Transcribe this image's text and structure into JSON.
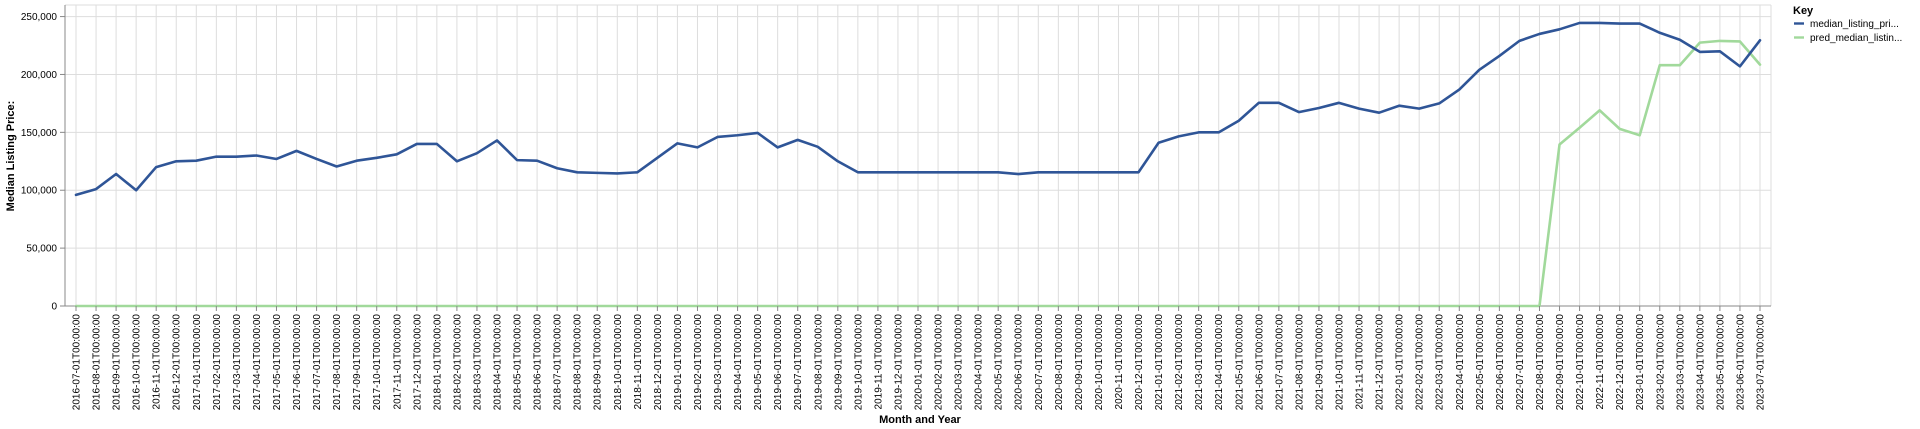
{
  "chart_data": {
    "type": "line",
    "xlabel": "Month and Year",
    "ylabel": "Median Listing Price:",
    "ylim": [
      0,
      260000
    ],
    "y_ticks": [
      0,
      50000,
      100000,
      150000,
      200000,
      250000
    ],
    "y_tick_labels": [
      "0",
      "50,000",
      "100,000",
      "150,000",
      "200,000",
      "250,000"
    ],
    "grid": true,
    "legend_position": "right",
    "legend_title": "Key",
    "categories": [
      "2016-07-01T00:00:00",
      "2016-08-01T00:00:00",
      "2016-09-01T00:00:00",
      "2016-10-01T00:00:00",
      "2016-11-01T00:00:00",
      "2016-12-01T00:00:00",
      "2017-01-01T00:00:00",
      "2017-02-01T00:00:00",
      "2017-03-01T00:00:00",
      "2017-04-01T00:00:00",
      "2017-05-01T00:00:00",
      "2017-06-01T00:00:00",
      "2017-07-01T00:00:00",
      "2017-08-01T00:00:00",
      "2017-09-01T00:00:00",
      "2017-10-01T00:00:00",
      "2017-11-01T00:00:00",
      "2017-12-01T00:00:00",
      "2018-01-01T00:00:00",
      "2018-02-01T00:00:00",
      "2018-03-01T00:00:00",
      "2018-04-01T00:00:00",
      "2018-05-01T00:00:00",
      "2018-06-01T00:00:00",
      "2018-07-01T00:00:00",
      "2018-08-01T00:00:00",
      "2018-09-01T00:00:00",
      "2018-10-01T00:00:00",
      "2018-11-01T00:00:00",
      "2018-12-01T00:00:00",
      "2019-01-01T00:00:00",
      "2019-02-01T00:00:00",
      "2019-03-01T00:00:00",
      "2019-04-01T00:00:00",
      "2019-05-01T00:00:00",
      "2019-06-01T00:00:00",
      "2019-07-01T00:00:00",
      "2019-08-01T00:00:00",
      "2019-09-01T00:00:00",
      "2019-10-01T00:00:00",
      "2019-11-01T00:00:00",
      "2019-12-01T00:00:00",
      "2020-01-01T00:00:00",
      "2020-02-01T00:00:00",
      "2020-03-01T00:00:00",
      "2020-04-01T00:00:00",
      "2020-05-01T00:00:00",
      "2020-06-01T00:00:00",
      "2020-07-01T00:00:00",
      "2020-08-01T00:00:00",
      "2020-09-01T00:00:00",
      "2020-10-01T00:00:00",
      "2020-11-01T00:00:00",
      "2020-12-01T00:00:00",
      "2021-01-01T00:00:00",
      "2021-02-01T00:00:00",
      "2021-03-01T00:00:00",
      "2021-04-01T00:00:00",
      "2021-05-01T00:00:00",
      "2021-06-01T00:00:00",
      "2021-07-01T00:00:00",
      "2021-08-01T00:00:00",
      "2021-09-01T00:00:00",
      "2021-10-01T00:00:00",
      "2021-11-01T00:00:00",
      "2021-12-01T00:00:00",
      "2022-01-01T00:00:00",
      "2022-02-01T00:00:00",
      "2022-03-01T00:00:00",
      "2022-04-01T00:00:00",
      "2022-05-01T00:00:00",
      "2022-06-01T00:00:00",
      "2022-07-01T00:00:00",
      "2022-08-01T00:00:00",
      "2022-09-01T00:00:00",
      "2022-10-01T00:00:00",
      "2022-11-01T00:00:00",
      "2022-12-01T00:00:00",
      "2023-01-01T00:00:00",
      "2023-02-01T00:00:00",
      "2023-03-01T00:00:00",
      "2023-04-01T00:00:00",
      "2023-05-01T00:00:00",
      "2023-06-01T00:00:00",
      "2023-07-01T00:00:00"
    ],
    "series": [
      {
        "name": "median_listing_pri...",
        "color": "#2f5597",
        "values": [
          96000,
          101000,
          114000,
          100000,
          120000,
          125000,
          125500,
          129000,
          129000,
          130000,
          127000,
          134000,
          127000,
          120500,
          125500,
          128000,
          131000,
          140000,
          140000,
          125000,
          132000,
          143000,
          126000,
          125500,
          119000,
          115500,
          115000,
          114500,
          115500,
          128000,
          140500,
          137000,
          146000,
          147500,
          149500,
          137000,
          143500,
          137500,
          125000,
          115500,
          115500,
          115500,
          115500,
          115500,
          115500,
          115500,
          115500,
          114000,
          115500,
          115500,
          115500,
          115500,
          115500,
          115500,
          141000,
          146500,
          150000,
          150000,
          160000,
          175500,
          175500,
          167500,
          171000,
          175500,
          170500,
          167000,
          173000,
          170500,
          175000,
          187000,
          204000,
          216000,
          229000,
          235000,
          239000,
          244500,
          244500,
          244000,
          244000,
          236000,
          230000,
          219500,
          220000,
          207000,
          229500
        ]
      },
      {
        "name": "pred_median_listin...",
        "color": "#a1d99b",
        "values": [
          0,
          0,
          0,
          0,
          0,
          0,
          0,
          0,
          0,
          0,
          0,
          0,
          0,
          0,
          0,
          0,
          0,
          0,
          0,
          0,
          0,
          0,
          0,
          0,
          0,
          0,
          0,
          0,
          0,
          0,
          0,
          0,
          0,
          0,
          0,
          0,
          0,
          0,
          0,
          0,
          0,
          0,
          0,
          0,
          0,
          0,
          0,
          0,
          0,
          0,
          0,
          0,
          0,
          0,
          0,
          0,
          0,
          0,
          0,
          0,
          0,
          0,
          0,
          0,
          0,
          0,
          0,
          0,
          0,
          0,
          0,
          0,
          0,
          0,
          139500,
          154000,
          169000,
          153000,
          147500,
          208000,
          208000,
          227500,
          229000,
          228500,
          208500
        ]
      }
    ]
  }
}
